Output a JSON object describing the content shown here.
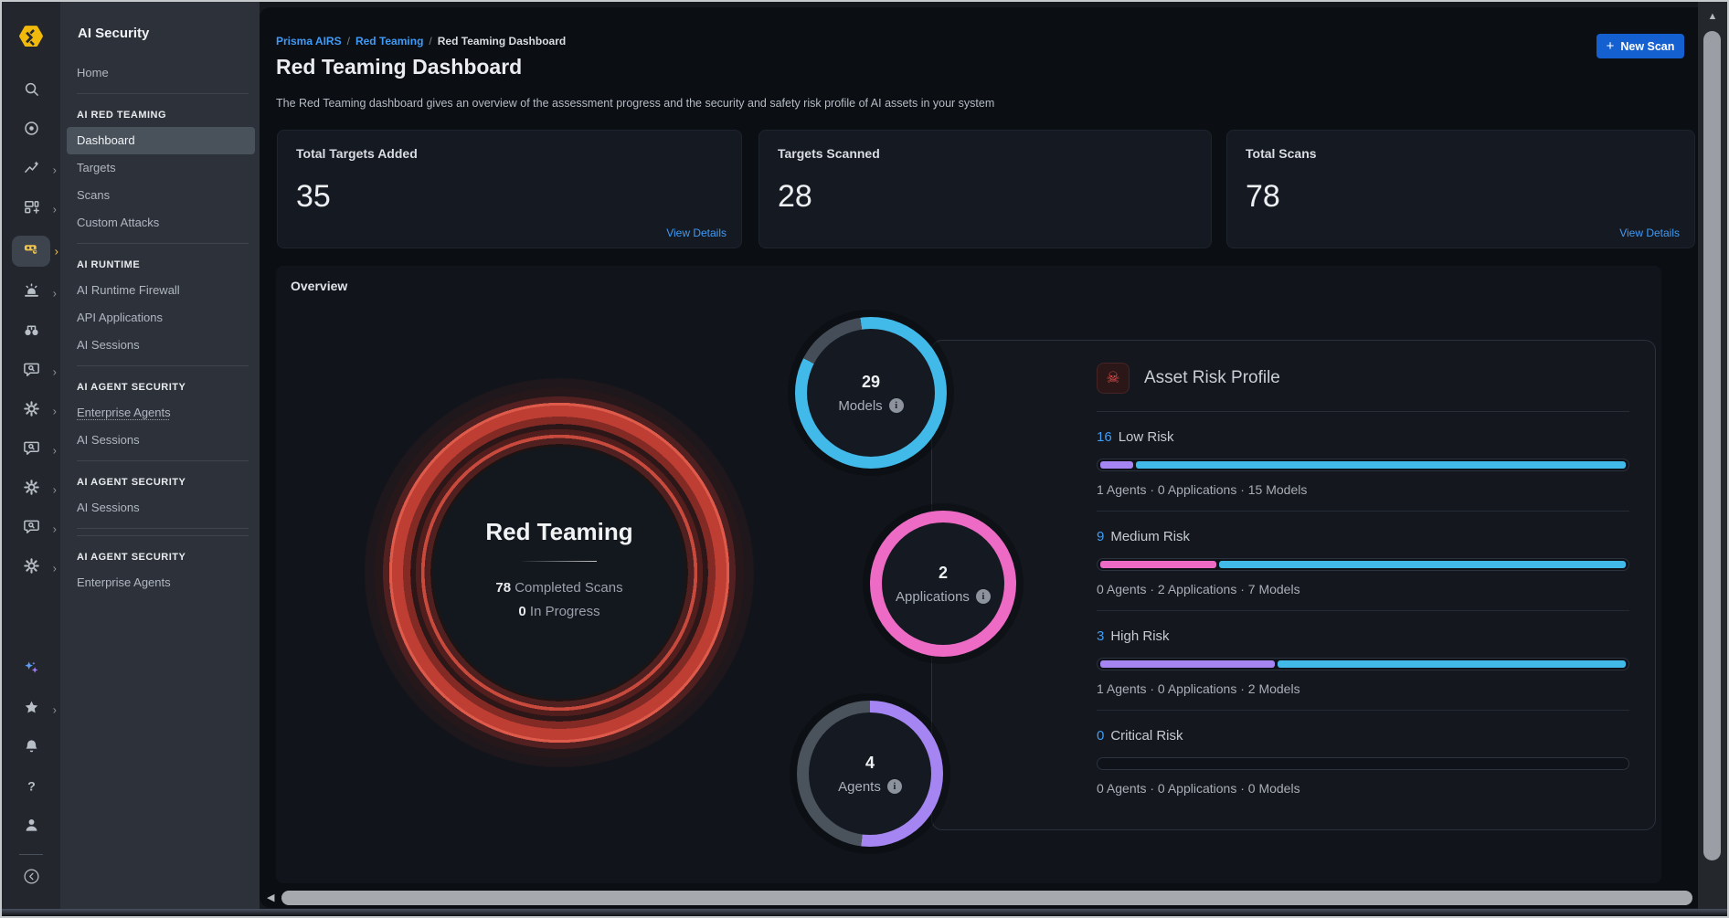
{
  "product": {
    "name": "AI Security"
  },
  "icon_rail": {
    "top": [
      {
        "icon": "search"
      },
      {
        "icon": "target"
      },
      {
        "icon": "trend",
        "chevron": true
      },
      {
        "icon": "layout",
        "chevron": true
      },
      {
        "icon": "redteam",
        "chevron": true,
        "active": true
      },
      {
        "icon": "siren",
        "chevron": true
      },
      {
        "icon": "binoculars"
      },
      {
        "icon": "chat-search",
        "chevron": true
      },
      {
        "icon": "gear",
        "chevron": true
      },
      {
        "icon": "chat-search",
        "chevron": true
      },
      {
        "icon": "gear",
        "chevron": true
      },
      {
        "icon": "chat-search",
        "chevron": true
      },
      {
        "icon": "gear",
        "chevron": true
      }
    ],
    "bottom": [
      {
        "icon": "sparkles"
      },
      {
        "icon": "star",
        "chevron": true
      },
      {
        "icon": "bell"
      },
      {
        "icon": "question"
      },
      {
        "icon": "person"
      },
      {
        "icon": "collapse",
        "divider_above": true
      }
    ]
  },
  "sidebar": {
    "items": [
      {
        "type": "item",
        "label": "Home"
      },
      {
        "type": "divider"
      },
      {
        "type": "section",
        "label": "AI RED TEAMING"
      },
      {
        "type": "item",
        "label": "Dashboard",
        "selected": true
      },
      {
        "type": "item",
        "label": "Targets"
      },
      {
        "type": "item",
        "label": "Scans"
      },
      {
        "type": "item",
        "label": "Custom Attacks"
      },
      {
        "type": "divider"
      },
      {
        "type": "section",
        "label": "AI RUNTIME"
      },
      {
        "type": "item",
        "label": "AI Runtime Firewall"
      },
      {
        "type": "item",
        "label": "API Applications"
      },
      {
        "type": "item",
        "label": "AI Sessions"
      },
      {
        "type": "divider"
      },
      {
        "type": "section",
        "label": "AI AGENT SECURITY"
      },
      {
        "type": "item",
        "label": "Enterprise Agents",
        "underlined": true
      },
      {
        "type": "item",
        "label": "AI Sessions"
      },
      {
        "type": "divider"
      },
      {
        "type": "section",
        "label": "AI AGENT SECURITY"
      },
      {
        "type": "item",
        "label": "AI Sessions"
      },
      {
        "type": "divider"
      },
      {
        "type": "divider"
      },
      {
        "type": "section",
        "label": "AI AGENT SECURITY"
      },
      {
        "type": "item",
        "label": "Enterprise Agents"
      }
    ]
  },
  "header": {
    "breadcrumb": [
      {
        "label": "Prisma AIRS",
        "link": true
      },
      {
        "label": "Red Teaming",
        "link": true
      },
      {
        "label": "Red Teaming Dashboard",
        "link": false
      }
    ],
    "breadcrumb_separator": "/",
    "title": "Red Teaming Dashboard",
    "subtitle": "The Red Teaming dashboard gives an overview of the assessment progress and the security and safety risk profile of AI assets in your system",
    "new_scan_label": "New Scan",
    "plus_glyph": "+"
  },
  "stats": [
    {
      "label": "Total Targets Added",
      "value": "35",
      "link": "View Details"
    },
    {
      "label": "Targets Scanned",
      "value": "28",
      "link": null
    },
    {
      "label": "Total Scans",
      "value": "78",
      "link": "View Details"
    }
  ],
  "overview": {
    "title": "Overview",
    "gauge": {
      "title": "Red Teaming",
      "completed_value": "78",
      "completed_label": "Completed Scans",
      "in_progress_value": "0",
      "in_progress_label": "In Progress"
    },
    "donuts": [
      {
        "value": "29",
        "label": "Models",
        "info_glyph": "i",
        "segments": [
          [
            "#41b9e9",
            0,
            297
          ],
          [
            "#454e58",
            297,
            352
          ],
          [
            "#41b9e9",
            352,
            360
          ]
        ]
      },
      {
        "value": "2",
        "label": "Applications",
        "info_glyph": "i",
        "segments": [
          [
            "#ed6bc4",
            0,
            360
          ]
        ]
      },
      {
        "value": "4",
        "label": "Agents",
        "info_glyph": "i",
        "segments": [
          [
            "#a585f2",
            0,
            187
          ],
          [
            "#4a525c",
            187,
            360
          ]
        ]
      }
    ],
    "risk_panel": {
      "icon_glyph": "☠",
      "title": "Asset Risk Profile",
      "rows": [
        {
          "count": "16",
          "label": "Low Risk",
          "agents": 1,
          "applications": 0,
          "models": 15,
          "detail": "1 Agents · 0 Applications · 15 Models"
        },
        {
          "count": "9",
          "label": "Medium Risk",
          "agents": 0,
          "applications": 2,
          "models": 7,
          "detail": "0 Agents · 2 Applications · 7 Models"
        },
        {
          "count": "3",
          "label": "High Risk",
          "agents": 1,
          "applications": 0,
          "models": 2,
          "detail": "1 Agents · 0 Applications · 2 Models"
        },
        {
          "count": "0",
          "label": "Critical Risk",
          "agents": 0,
          "applications": 0,
          "models": 0,
          "detail": "0 Agents · 0 Applications · 0 Models"
        }
      ]
    }
  },
  "scrollbars": {
    "up_arrow": "▲",
    "left_arrow": "◀"
  },
  "colors": {
    "accent_blue": "#3f9bf7",
    "button_blue": "#1560d0",
    "cyan": "#41b9e9",
    "pink": "#ed6bc4",
    "purple": "#a585f2",
    "risk_count_blue": "#3e9ef6",
    "gauge_red": "#cc4a3c",
    "rail_active_yellow": "#f2c44d"
  }
}
